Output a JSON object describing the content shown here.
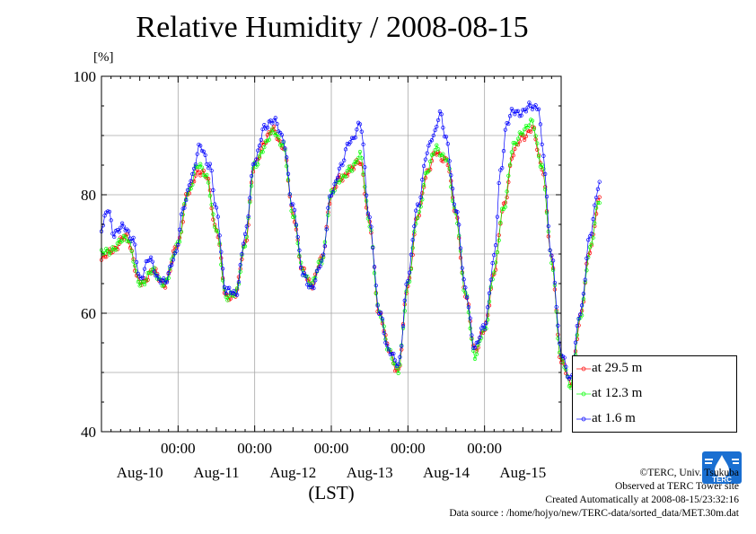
{
  "title": "Relative Humidity / 2008-08-15",
  "unit_label": "[%]",
  "credits": {
    "copyright": "©TERC, Univ. Tsukuba",
    "observed": "Observed at TERC Tower site",
    "created": "Created Automatically at 2008-08-15/23:32:16",
    "source": "Data source : /home/hojyo/new/TERC-data/sorted_data/MET.30m.dat"
  },
  "logo_text": "TERC",
  "chart_data": {
    "type": "line",
    "xlabel": "(LST)",
    "ylabel": "[%]",
    "title": "Relative Humidity / 2008-08-15",
    "ylim": [
      40,
      100
    ],
    "xlim_days": [
      -1,
      5
    ],
    "yticks": [
      40,
      60,
      80,
      100
    ],
    "time_tick_label": "00:00",
    "date_labels": [
      "Aug-10",
      "Aug-11",
      "Aug-12",
      "Aug-13",
      "Aug-14",
      "Aug-15"
    ],
    "grid": true,
    "legend_position": "bottom-right",
    "x_unit": "hours from 2008-08-10 00:00 (LST)",
    "series": [
      {
        "name": "at 29.5 m",
        "color": "#ff0000",
        "points": [
          [
            -24,
            69
          ],
          [
            -20,
            71
          ],
          [
            -16,
            73
          ],
          [
            -12,
            65
          ],
          [
            -8,
            67
          ],
          [
            -4,
            65
          ],
          [
            0,
            72
          ],
          [
            3,
            80
          ],
          [
            6,
            84
          ],
          [
            9,
            83
          ],
          [
            12,
            74
          ],
          [
            15,
            63
          ],
          [
            18,
            63
          ],
          [
            21,
            72
          ],
          [
            24,
            85
          ],
          [
            27,
            89
          ],
          [
            30,
            91
          ],
          [
            33,
            88
          ],
          [
            36,
            77
          ],
          [
            39,
            67
          ],
          [
            42,
            65
          ],
          [
            45,
            69
          ],
          [
            48,
            80
          ],
          [
            51,
            83
          ],
          [
            54,
            84
          ],
          [
            57,
            86
          ],
          [
            60,
            75
          ],
          [
            63,
            60
          ],
          [
            66,
            54
          ],
          [
            69,
            50
          ],
          [
            72,
            65
          ],
          [
            75,
            76
          ],
          [
            78,
            84
          ],
          [
            81,
            87
          ],
          [
            84,
            86
          ],
          [
            87,
            77
          ],
          [
            90,
            63
          ],
          [
            93,
            54
          ],
          [
            96,
            57
          ],
          [
            99,
            67
          ],
          [
            102,
            78
          ],
          [
            105,
            87
          ],
          [
            108,
            90
          ],
          [
            111,
            91
          ],
          [
            114,
            85
          ],
          [
            117,
            69
          ],
          [
            120,
            52
          ],
          [
            123,
            48
          ],
          [
            126,
            59
          ],
          [
            129,
            71
          ],
          [
            132,
            79
          ]
        ]
      },
      {
        "name": "at 12.3 m",
        "color": "#00ff00",
        "points": [
          [
            -24,
            70
          ],
          [
            -20,
            71
          ],
          [
            -16,
            73
          ],
          [
            -12,
            65
          ],
          [
            -8,
            67
          ],
          [
            -4,
            65
          ],
          [
            0,
            72
          ],
          [
            3,
            80
          ],
          [
            6,
            85
          ],
          [
            9,
            83
          ],
          [
            12,
            74
          ],
          [
            15,
            63
          ],
          [
            18,
            63
          ],
          [
            21,
            72
          ],
          [
            24,
            85
          ],
          [
            27,
            88
          ],
          [
            30,
            91
          ],
          [
            33,
            88
          ],
          [
            36,
            77
          ],
          [
            39,
            67
          ],
          [
            42,
            65
          ],
          [
            45,
            69
          ],
          [
            48,
            80
          ],
          [
            51,
            83
          ],
          [
            54,
            84
          ],
          [
            57,
            87
          ],
          [
            60,
            75
          ],
          [
            63,
            60
          ],
          [
            66,
            54
          ],
          [
            69,
            50
          ],
          [
            72,
            65
          ],
          [
            75,
            76
          ],
          [
            78,
            84
          ],
          [
            81,
            88
          ],
          [
            84,
            86
          ],
          [
            87,
            77
          ],
          [
            90,
            63
          ],
          [
            93,
            53
          ],
          [
            96,
            57
          ],
          [
            99,
            67
          ],
          [
            102,
            78
          ],
          [
            105,
            88
          ],
          [
            108,
            91
          ],
          [
            111,
            92
          ],
          [
            114,
            85
          ],
          [
            117,
            69
          ],
          [
            120,
            52
          ],
          [
            123,
            48
          ],
          [
            126,
            59
          ],
          [
            129,
            71
          ],
          [
            132,
            79
          ]
        ]
      },
      {
        "name": "at 1.6 m",
        "color": "#0000ff",
        "points": [
          [
            -24,
            74
          ],
          [
            -22,
            78
          ],
          [
            -20,
            73
          ],
          [
            -17,
            75
          ],
          [
            -14,
            72
          ],
          [
            -12,
            66
          ],
          [
            -9,
            69
          ],
          [
            -6,
            66
          ],
          [
            -4,
            65
          ],
          [
            -1,
            70
          ],
          [
            2,
            78
          ],
          [
            4,
            83
          ],
          [
            7,
            88
          ],
          [
            10,
            85
          ],
          [
            12,
            77
          ],
          [
            15,
            64
          ],
          [
            18,
            63
          ],
          [
            21,
            73
          ],
          [
            24,
            86
          ],
          [
            27,
            91
          ],
          [
            30,
            93
          ],
          [
            33,
            89
          ],
          [
            36,
            78
          ],
          [
            39,
            67
          ],
          [
            42,
            64
          ],
          [
            45,
            69
          ],
          [
            48,
            80
          ],
          [
            51,
            85
          ],
          [
            54,
            89
          ],
          [
            57,
            92
          ],
          [
            60,
            76
          ],
          [
            63,
            60
          ],
          [
            66,
            54
          ],
          [
            69,
            51
          ],
          [
            72,
            66
          ],
          [
            75,
            78
          ],
          [
            78,
            87
          ],
          [
            80,
            90
          ],
          [
            82,
            94
          ],
          [
            84,
            89
          ],
          [
            87,
            78
          ],
          [
            90,
            64
          ],
          [
            93,
            54
          ],
          [
            96,
            58
          ],
          [
            99,
            69
          ],
          [
            101,
            84
          ],
          [
            103,
            92
          ],
          [
            105,
            94
          ],
          [
            108,
            94
          ],
          [
            111,
            95
          ],
          [
            113,
            95
          ],
          [
            114,
            88
          ],
          [
            117,
            70
          ],
          [
            120,
            53
          ],
          [
            123,
            49
          ],
          [
            126,
            60
          ],
          [
            129,
            73
          ],
          [
            132,
            82
          ]
        ]
      }
    ]
  }
}
